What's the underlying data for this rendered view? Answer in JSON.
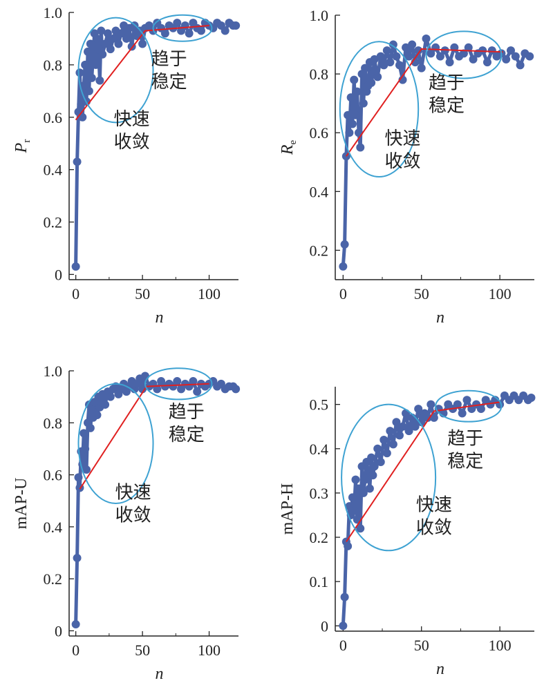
{
  "colors": {
    "series": "#4a64a8",
    "trend": "#e02020",
    "ellipse": "#3ea2d2",
    "axis": "#222222"
  },
  "chart_data": [
    {
      "type": "line",
      "panel": "top-left",
      "title": "",
      "xlabel": "n",
      "ylabel": "P",
      "ylabel_sub": "r",
      "xlim": [
        -5,
        122
      ],
      "ylim": [
        -0.02,
        1.0
      ],
      "xticks": [
        0,
        50,
        100
      ],
      "yticks": [
        0,
        0.2,
        0.4,
        0.6,
        0.8,
        1.0
      ],
      "ytick_labels": [
        "0",
        "0.2",
        "0.4",
        "0.6",
        "0.8",
        "1.0"
      ],
      "x": [
        0,
        1,
        2,
        3,
        4,
        5,
        6,
        7,
        8,
        9,
        10,
        11,
        12,
        13,
        14,
        15,
        16,
        17,
        18,
        19,
        20,
        22,
        24,
        26,
        28,
        30,
        32,
        34,
        36,
        38,
        40,
        42,
        44,
        46,
        48,
        50,
        52,
        55,
        58,
        61,
        64,
        67,
        70,
        73,
        76,
        79,
        82,
        85,
        88,
        91,
        94,
        97,
        100,
        103,
        106,
        109,
        112,
        115,
        118,
        120
      ],
      "y": [
        0.03,
        0.43,
        0.62,
        0.77,
        0.65,
        0.6,
        0.72,
        0.8,
        0.66,
        0.85,
        0.7,
        0.88,
        0.75,
        0.84,
        0.92,
        0.8,
        0.9,
        0.86,
        0.74,
        0.93,
        0.84,
        0.88,
        0.92,
        0.86,
        0.9,
        0.93,
        0.88,
        0.92,
        0.95,
        0.9,
        0.94,
        0.87,
        0.95,
        0.91,
        0.93,
        0.88,
        0.94,
        0.95,
        0.93,
        0.96,
        0.94,
        0.92,
        0.95,
        0.94,
        0.96,
        0.93,
        0.95,
        0.92,
        0.96,
        0.94,
        0.93,
        0.96,
        0.95,
        0.94,
        0.96,
        0.95,
        0.93,
        0.96,
        0.95,
        0.95
      ],
      "trend": {
        "x": [
          0,
          52,
          100
        ],
        "y": [
          0.59,
          0.93,
          0.95
        ]
      },
      "ellipses": [
        {
          "cx": 30,
          "cy": 0.78,
          "rx": 28,
          "ry": 0.2,
          "label": [
            "快速",
            "收敛"
          ]
        },
        {
          "cx": 80,
          "cy": 0.94,
          "rx": 22,
          "ry": 0.05,
          "label": [
            "趋于",
            "稳定"
          ]
        }
      ],
      "annotations": [
        {
          "text": [
            "快速",
            "收敛"
          ],
          "x": 42,
          "y": 0.57
        },
        {
          "text": [
            "趋于",
            "稳定"
          ],
          "x": 70,
          "y": 0.8
        }
      ]
    },
    {
      "type": "line",
      "panel": "top-right",
      "title": "",
      "xlabel": "n",
      "ylabel": "R",
      "ylabel_sub": "e",
      "xlim": [
        -5,
        122
      ],
      "ylim": [
        0.1,
        1.0
      ],
      "xticks": [
        0,
        50,
        100
      ],
      "yticks": [
        0.2,
        0.4,
        0.6,
        0.8,
        1.0
      ],
      "ytick_labels": [
        "0.2",
        "0.4",
        "0.6",
        "0.8",
        "1.0"
      ],
      "x": [
        0,
        1,
        2,
        3,
        4,
        5,
        6,
        7,
        8,
        9,
        10,
        11,
        12,
        13,
        14,
        15,
        16,
        17,
        18,
        19,
        20,
        22,
        24,
        26,
        28,
        30,
        32,
        34,
        36,
        38,
        40,
        42,
        44,
        46,
        48,
        50,
        53,
        56,
        59,
        62,
        65,
        68,
        71,
        74,
        77,
        80,
        83,
        86,
        89,
        92,
        95,
        98,
        101,
        104,
        107,
        110,
        113,
        116,
        119
      ],
      "y": [
        0.145,
        0.22,
        0.52,
        0.66,
        0.6,
        0.72,
        0.63,
        0.78,
        0.66,
        0.74,
        0.6,
        0.55,
        0.8,
        0.7,
        0.82,
        0.74,
        0.76,
        0.84,
        0.77,
        0.8,
        0.85,
        0.79,
        0.86,
        0.83,
        0.88,
        0.84,
        0.9,
        0.86,
        0.83,
        0.78,
        0.89,
        0.86,
        0.9,
        0.84,
        0.88,
        0.82,
        0.92,
        0.87,
        0.89,
        0.86,
        0.88,
        0.84,
        0.89,
        0.86,
        0.87,
        0.89,
        0.85,
        0.87,
        0.88,
        0.84,
        0.88,
        0.86,
        0.87,
        0.85,
        0.88,
        0.86,
        0.83,
        0.87,
        0.86
      ],
      "trend": {
        "x": [
          2,
          50,
          102
        ],
        "y": [
          0.52,
          0.885,
          0.875
        ]
      },
      "ellipses": [
        {
          "cx": 23,
          "cy": 0.68,
          "rx": 25,
          "ry": 0.23,
          "label": [
            "快速",
            "收敛"
          ]
        },
        {
          "cx": 77,
          "cy": 0.865,
          "rx": 24,
          "ry": 0.08,
          "label": [
            "趋于",
            "稳定"
          ]
        }
      ],
      "annotations": [
        {
          "text": [
            "快速",
            "收敛"
          ],
          "x": 38,
          "y": 0.56
        },
        {
          "text": [
            "趋于",
            "稳定"
          ],
          "x": 66,
          "y": 0.75
        }
      ]
    },
    {
      "type": "line",
      "panel": "bottom-left",
      "title": "",
      "xlabel": "n",
      "ylabel": "mAP-U",
      "ylabel_sub": "",
      "xlim": [
        -5,
        122
      ],
      "ylim": [
        -0.02,
        1.0
      ],
      "xticks": [
        0,
        50,
        100
      ],
      "yticks": [
        0,
        0.2,
        0.4,
        0.6,
        0.8,
        1.0
      ],
      "ytick_labels": [
        "0",
        "0.2",
        "0.4",
        "0.6",
        "0.8",
        "1.0"
      ],
      "x": [
        0,
        1,
        2,
        3,
        4,
        5,
        6,
        7,
        8,
        9,
        10,
        11,
        12,
        13,
        14,
        15,
        16,
        17,
        18,
        19,
        20,
        22,
        24,
        26,
        28,
        30,
        32,
        34,
        36,
        38,
        40,
        42,
        44,
        46,
        48,
        50,
        52,
        55,
        58,
        61,
        64,
        67,
        70,
        73,
        76,
        79,
        82,
        85,
        88,
        91,
        94,
        97,
        100,
        103,
        106,
        109,
        112,
        115,
        118,
        120
      ],
      "y": [
        0.025,
        0.28,
        0.59,
        0.55,
        0.69,
        0.64,
        0.76,
        0.7,
        0.62,
        0.8,
        0.87,
        0.78,
        0.85,
        0.82,
        0.88,
        0.84,
        0.83,
        0.9,
        0.86,
        0.88,
        0.91,
        0.87,
        0.92,
        0.9,
        0.93,
        0.94,
        0.91,
        0.93,
        0.95,
        0.92,
        0.94,
        0.96,
        0.93,
        0.95,
        0.97,
        0.93,
        0.98,
        0.94,
        0.95,
        0.93,
        0.96,
        0.94,
        0.95,
        0.94,
        0.96,
        0.93,
        0.95,
        0.94,
        0.96,
        0.92,
        0.95,
        0.94,
        0.95,
        0.96,
        0.94,
        0.95,
        0.93,
        0.94,
        0.94,
        0.93
      ],
      "trend": {
        "x": [
          3,
          53,
          100
        ],
        "y": [
          0.545,
          0.94,
          0.95
        ]
      },
      "ellipses": [
        {
          "cx": 30,
          "cy": 0.72,
          "rx": 28,
          "ry": 0.23,
          "label": [
            "快速",
            "收敛"
          ]
        },
        {
          "cx": 77,
          "cy": 0.95,
          "rx": 25,
          "ry": 0.06,
          "label": [
            "趋于",
            "稳定"
          ]
        }
      ],
      "annotations": [
        {
          "text": [
            "快速",
            "收敛"
          ],
          "x": 43,
          "y": 0.51
        },
        {
          "text": [
            "趋于",
            "稳定"
          ],
          "x": 83,
          "y": 0.82
        }
      ]
    },
    {
      "type": "line",
      "panel": "bottom-right",
      "title": "",
      "xlabel": "n",
      "ylabel": "mAP-H",
      "ylabel_sub": "",
      "xlim": [
        -5,
        122
      ],
      "ylim": [
        -0.012,
        0.54
      ],
      "xticks": [
        0,
        50,
        100
      ],
      "yticks": [
        0,
        0.1,
        0.2,
        0.3,
        0.4,
        0.5
      ],
      "ytick_labels": [
        "0",
        "0.1",
        "0.2",
        "0.3",
        "0.4",
        "0.5"
      ],
      "x": [
        0,
        1,
        2,
        3,
        4,
        5,
        6,
        7,
        8,
        9,
        10,
        11,
        12,
        13,
        14,
        15,
        16,
        17,
        18,
        19,
        20,
        22,
        24,
        26,
        28,
        30,
        32,
        34,
        36,
        38,
        40,
        42,
        44,
        46,
        48,
        50,
        52,
        54,
        56,
        58,
        61,
        64,
        67,
        70,
        73,
        76,
        79,
        82,
        85,
        88,
        91,
        94,
        97,
        100,
        103,
        106,
        109,
        112,
        115,
        118,
        120
      ],
      "y": [
        0,
        0.065,
        0.19,
        0.18,
        0.27,
        0.25,
        0.29,
        0.26,
        0.33,
        0.24,
        0.31,
        0.22,
        0.36,
        0.3,
        0.33,
        0.37,
        0.35,
        0.31,
        0.38,
        0.34,
        0.36,
        0.4,
        0.37,
        0.42,
        0.39,
        0.44,
        0.41,
        0.46,
        0.43,
        0.45,
        0.48,
        0.44,
        0.47,
        0.45,
        0.49,
        0.46,
        0.48,
        0.47,
        0.5,
        0.47,
        0.49,
        0.48,
        0.5,
        0.49,
        0.5,
        0.48,
        0.51,
        0.49,
        0.5,
        0.49,
        0.51,
        0.5,
        0.51,
        0.5,
        0.52,
        0.51,
        0.52,
        0.51,
        0.52,
        0.51,
        0.515
      ],
      "trend": {
        "x": [
          2,
          58,
          100
        ],
        "y": [
          0.19,
          0.485,
          0.505
        ]
      },
      "ellipses": [
        {
          "cx": 29,
          "cy": 0.335,
          "rx": 30,
          "ry": 0.165,
          "label": [
            "快速",
            "收敛"
          ]
        },
        {
          "cx": 80,
          "cy": 0.496,
          "rx": 21,
          "ry": 0.035,
          "label": [
            "趋于",
            "稳定"
          ]
        }
      ],
      "annotations": [
        {
          "text": [
            "快速",
            "收敛"
          ],
          "x": 58,
          "y": 0.26
        },
        {
          "text": [
            "趋于",
            "稳定"
          ],
          "x": 78,
          "y": 0.41
        }
      ]
    }
  ]
}
